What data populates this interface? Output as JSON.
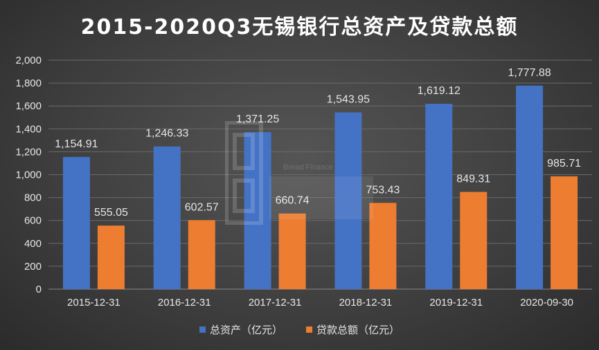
{
  "chart_data": {
    "type": "bar",
    "title": "2015-2020Q3无锡银行总资产及贷款总额",
    "categories": [
      "2015-12-31",
      "2016-12-31",
      "2017-12-31",
      "2018-12-31",
      "2019-12-31",
      "2020-09-30"
    ],
    "series": [
      {
        "name": "总资产（亿元）",
        "values": [
          1154.91,
          1246.33,
          1371.25,
          1543.95,
          1619.12,
          1777.88
        ],
        "color": "#4472c4"
      },
      {
        "name": "贷款总额（亿元）",
        "values": [
          555.05,
          602.57,
          660.74,
          753.43,
          849.31,
          985.71
        ],
        "color": "#ed7d31"
      }
    ],
    "data_labels": [
      [
        "1,154.91",
        "1,246.33",
        "1,371.25",
        "1,543.95",
        "1,619.12",
        "1,777.88"
      ],
      [
        "555.05",
        "602.57",
        "660.74",
        "753.43",
        "849.31",
        "985.71"
      ]
    ],
    "ylim": [
      0,
      2000
    ],
    "yticks": [
      0,
      200,
      400,
      600,
      800,
      1000,
      1200,
      1400,
      1600,
      1800,
      2000
    ],
    "ytick_labels": [
      "0",
      "200",
      "400",
      "600",
      "800",
      "1,000",
      "1,200",
      "1,400",
      "1,600",
      "1,800",
      "2,000"
    ],
    "grid": true,
    "legend_position": "bottom"
  },
  "watermark": {
    "text": "Bread Finance"
  }
}
